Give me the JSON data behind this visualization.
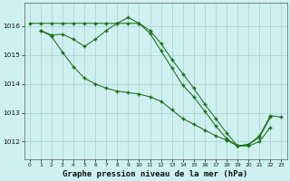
{
  "bg_color": "#cff0f0",
  "grid_color": "#aad8d8",
  "line_color": "#1a6e1a",
  "title": "Graphe pression niveau de la mer (hPa)",
  "title_fontsize": 6.5,
  "xlim": [
    -0.5,
    23.5
  ],
  "ylim": [
    1011.4,
    1016.8
  ],
  "yticks": [
    1012,
    1013,
    1014,
    1015,
    1016
  ],
  "xticks": [
    0,
    1,
    2,
    3,
    4,
    5,
    6,
    7,
    8,
    9,
    10,
    11,
    12,
    13,
    14,
    15,
    16,
    17,
    18,
    19,
    20,
    21,
    22,
    23
  ],
  "line1_x": [
    0,
    1,
    2,
    3,
    4,
    5,
    6,
    7,
    8,
    9,
    10,
    11,
    12,
    13,
    14,
    15,
    16,
    17,
    18,
    19,
    20,
    21,
    22,
    23
  ],
  "line1_y": [
    1016.1,
    1016.1,
    1016.1,
    1016.1,
    1016.1,
    1016.1,
    1016.1,
    1016.1,
    1016.1,
    1016.1,
    1016.1,
    1015.85,
    1015.4,
    1014.85,
    1014.35,
    1013.85,
    1013.3,
    1012.8,
    1012.3,
    1011.85,
    1011.9,
    1012.2,
    1012.9,
    1012.85
  ],
  "line2_x": [
    1,
    2,
    3,
    4,
    5,
    6,
    7,
    8,
    9,
    10,
    11,
    12,
    13,
    14,
    15,
    16,
    17,
    18,
    19,
    20,
    21,
    22
  ],
  "line2_y": [
    1015.85,
    1015.7,
    1015.72,
    1015.55,
    1015.3,
    1015.55,
    1015.85,
    1016.1,
    1016.3,
    1016.1,
    1015.75,
    1015.15,
    1014.55,
    1013.95,
    1013.55,
    1013.05,
    1012.55,
    1012.1,
    1011.85,
    1011.9,
    1012.15,
    1012.85
  ],
  "line3_x": [
    1,
    2,
    3,
    4,
    5,
    6,
    7,
    8,
    9,
    10,
    11,
    12,
    13,
    14,
    15,
    16,
    17,
    18,
    19,
    20,
    21,
    22
  ],
  "line3_y": [
    1015.85,
    1015.65,
    1015.1,
    1014.6,
    1014.2,
    1014.0,
    1013.85,
    1013.75,
    1013.7,
    1013.65,
    1013.55,
    1013.4,
    1013.1,
    1012.8,
    1012.6,
    1012.4,
    1012.2,
    1012.05,
    1011.85,
    1011.85,
    1012.0,
    1012.5
  ]
}
